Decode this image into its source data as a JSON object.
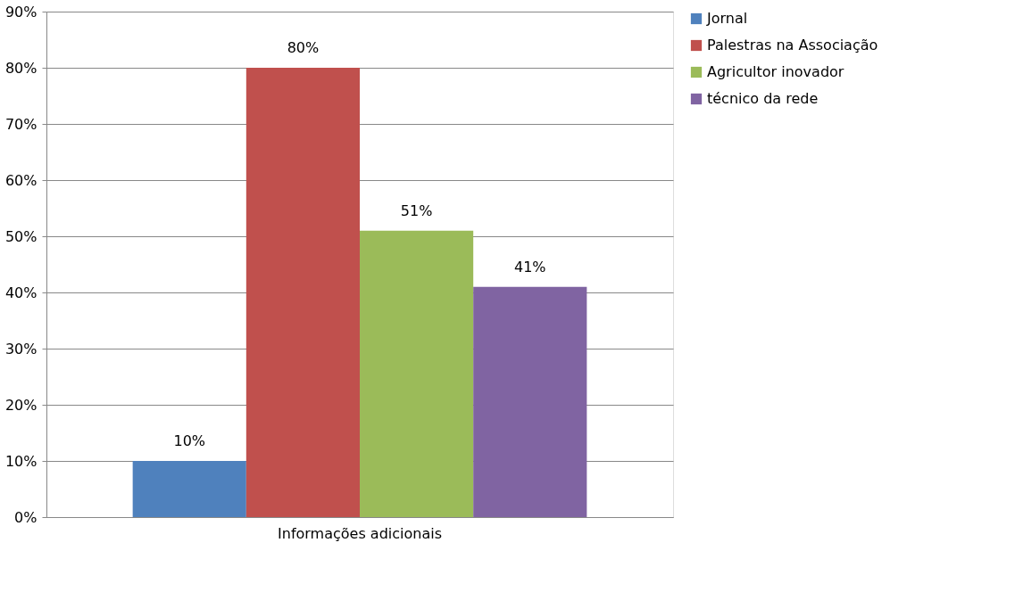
{
  "chart_data": {
    "type": "bar",
    "categories": [
      "Informações adicionais"
    ],
    "series": [
      {
        "name": "Jornal",
        "color": "#4f81bd",
        "values": [
          10
        ],
        "value_labels": [
          "10%"
        ]
      },
      {
        "name": "Palestras na Associação",
        "color": "#c0504d",
        "values": [
          80
        ],
        "value_labels": [
          "80%"
        ]
      },
      {
        "name": "Agricultor inovador",
        "color": "#9bbb59",
        "values": [
          51
        ],
        "value_labels": [
          "51%"
        ]
      },
      {
        "name": "técnico da rede",
        "color": "#8064a2",
        "values": [
          41
        ],
        "value_labels": [
          "41%"
        ]
      }
    ],
    "ylim": [
      0,
      90
    ],
    "yticks": [
      {
        "value": 0,
        "label": "0%"
      },
      {
        "value": 10,
        "label": "10%"
      },
      {
        "value": 20,
        "label": "20%"
      },
      {
        "value": 30,
        "label": "30%"
      },
      {
        "value": 40,
        "label": "40%"
      },
      {
        "value": 50,
        "label": "50%"
      },
      {
        "value": 60,
        "label": "60%"
      },
      {
        "value": 70,
        "label": "70%"
      },
      {
        "value": 80,
        "label": "80%"
      },
      {
        "value": 90,
        "label": "90%"
      }
    ],
    "grid": "y",
    "legend": "right"
  }
}
